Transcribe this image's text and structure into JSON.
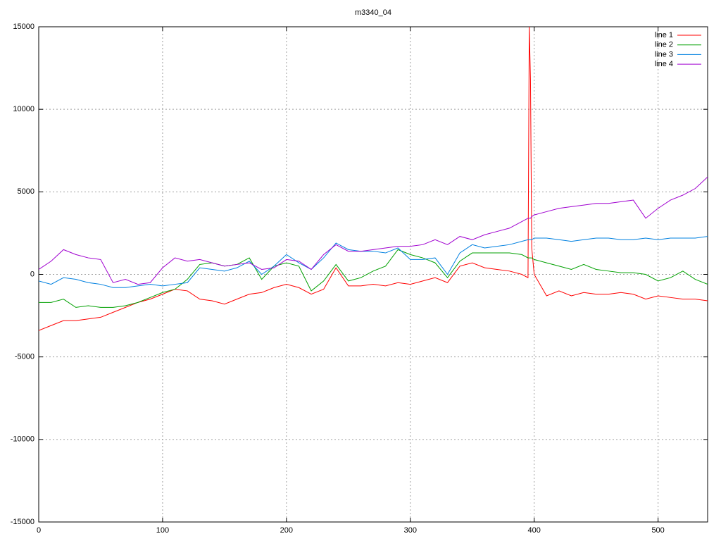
{
  "chart_data": {
    "type": "line",
    "title": "m3340_04",
    "x": [
      0,
      10,
      20,
      30,
      40,
      50,
      60,
      70,
      80,
      90,
      100,
      110,
      120,
      130,
      140,
      150,
      160,
      170,
      180,
      190,
      200,
      210,
      220,
      230,
      240,
      250,
      260,
      270,
      280,
      290,
      300,
      310,
      320,
      330,
      340,
      350,
      360,
      370,
      380,
      390,
      395,
      396,
      397,
      398,
      400,
      410,
      420,
      430,
      440,
      450,
      460,
      470,
      480,
      490,
      500,
      510,
      520,
      530,
      540
    ],
    "series": [
      {
        "name": "line 1",
        "color": "#ff0000",
        "values": [
          -3400,
          -3100,
          -2800,
          -2800,
          -2700,
          -2600,
          -2300,
          -2000,
          -1700,
          -1500,
          -1200,
          -900,
          -1000,
          -1500,
          -1600,
          -1800,
          -1500,
          -1200,
          -1100,
          -800,
          -600,
          -800,
          -1200,
          -900,
          400,
          -700,
          -700,
          -600,
          -700,
          -500,
          -600,
          -400,
          -200,
          -500,
          500,
          700,
          400,
          300,
          200,
          0,
          -200,
          15000,
          11800,
          1600,
          0,
          -1300,
          -1000,
          -1300,
          -1100,
          -1200,
          -1200,
          -1100,
          -1200,
          -1500,
          -1300,
          -1400,
          -1500,
          -1500,
          -1600
        ]
      },
      {
        "name": "line 2",
        "color": "#00a000",
        "values": [
          -1700,
          -1700,
          -1500,
          -2000,
          -1900,
          -2000,
          -2000,
          -1900,
          -1700,
          -1400,
          -1100,
          -900,
          -300,
          600,
          700,
          500,
          600,
          1000,
          -300,
          500,
          700,
          500,
          -1000,
          -400,
          600,
          -400,
          -200,
          200,
          500,
          1500,
          1200,
          1000,
          700,
          -200,
          800,
          1300,
          1300,
          1300,
          1300,
          1200,
          1000,
          1000,
          1000,
          1000,
          900,
          700,
          500,
          300,
          600,
          300,
          200,
          100,
          100,
          0,
          -400,
          -200,
          200,
          -300,
          -600
        ]
      },
      {
        "name": "line 3",
        "color": "#0080e0",
        "values": [
          -400,
          -600,
          -200,
          -300,
          -500,
          -600,
          -800,
          -800,
          -700,
          -600,
          -700,
          -600,
          -500,
          400,
          300,
          200,
          400,
          800,
          0,
          500,
          1200,
          700,
          300,
          1000,
          1900,
          1500,
          1400,
          1400,
          1300,
          1600,
          900,
          900,
          1000,
          0,
          1300,
          1800,
          1600,
          1700,
          1800,
          2000,
          2100,
          2100,
          2100,
          2100,
          2200,
          2200,
          2100,
          2000,
          2100,
          2200,
          2200,
          2100,
          2100,
          2200,
          2100,
          2200,
          2200,
          2200,
          2300
        ]
      },
      {
        "name": "line 4",
        "color": "#a000d0",
        "values": [
          300,
          800,
          1500,
          1200,
          1000,
          900,
          -500,
          -300,
          -600,
          -500,
          400,
          1000,
          800,
          900,
          700,
          500,
          600,
          700,
          300,
          400,
          900,
          800,
          300,
          1200,
          1800,
          1400,
          1400,
          1500,
          1600,
          1700,
          1700,
          1800,
          2100,
          1800,
          2300,
          2100,
          2400,
          2600,
          2800,
          3200,
          3400,
          3400,
          3400,
          3500,
          3600,
          3800,
          4000,
          4100,
          4200,
          4300,
          4300,
          4400,
          4500,
          3400,
          4000,
          4500,
          4800,
          5200,
          5900
        ]
      }
    ],
    "xlim": [
      0,
      540
    ],
    "xticks": [
      0,
      100,
      200,
      300,
      400,
      500
    ],
    "ylim": [
      -15000,
      15000
    ],
    "yticks": [
      -15000,
      -10000,
      -5000,
      0,
      5000,
      10000,
      15000
    ],
    "grid": true,
    "legend": "top-right"
  }
}
